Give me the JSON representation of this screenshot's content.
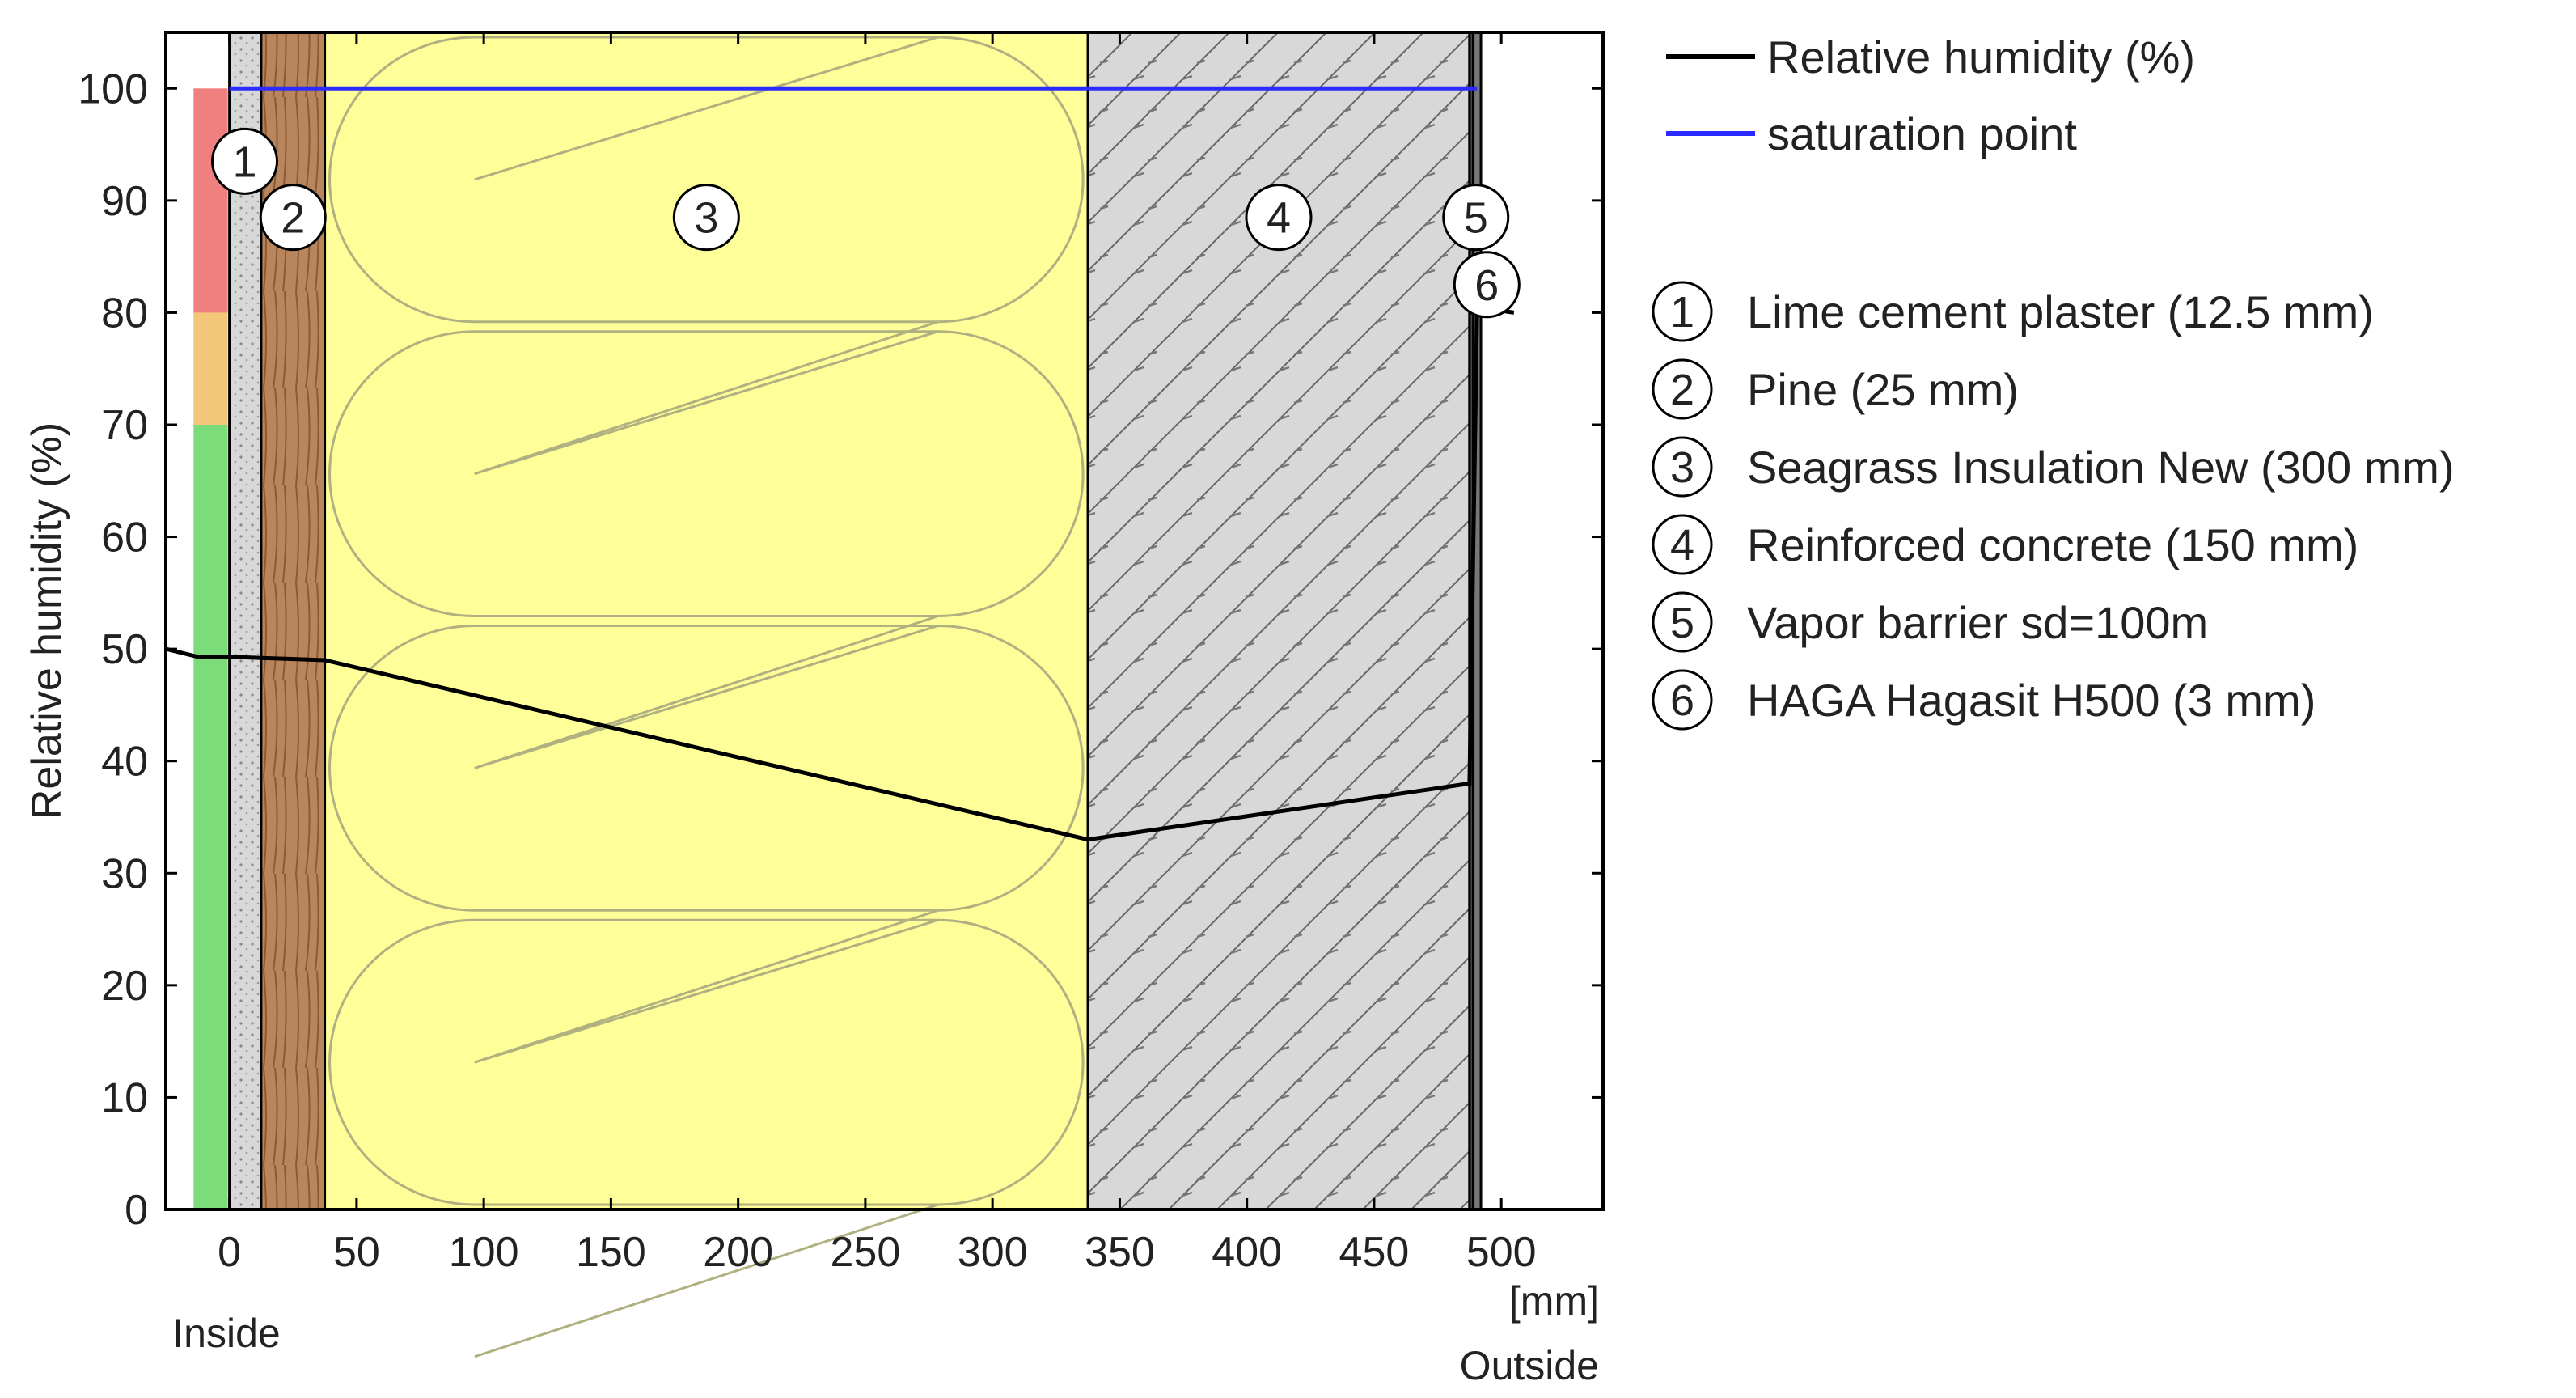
{
  "chart_data": {
    "type": "line",
    "ylabel": "Relative humidity (%)",
    "xunit": "[mm]",
    "x_side_labels": {
      "inside": "Inside",
      "outside": "Outside"
    },
    "xlim": [
      -25,
      540
    ],
    "ylim": [
      0,
      105
    ],
    "x_ticks": [
      0,
      50,
      100,
      150,
      200,
      250,
      300,
      350,
      400,
      450,
      500
    ],
    "y_ticks": [
      0,
      10,
      20,
      30,
      40,
      50,
      60,
      70,
      80,
      90,
      100
    ],
    "series": [
      {
        "name": "Relative humidity (%)",
        "color": "#000000",
        "points": [
          [
            -25,
            50
          ],
          [
            -12.5,
            49.3
          ],
          [
            0,
            49.3
          ],
          [
            12.5,
            49.2
          ],
          [
            37.5,
            49.0
          ],
          [
            337.5,
            33.0
          ],
          [
            487.5,
            38.0
          ],
          [
            490.5,
            80.5
          ],
          [
            505,
            80.0
          ]
        ]
      },
      {
        "name": "saturation point",
        "color": "#2b2bff",
        "points": [
          [
            0,
            100
          ],
          [
            490.5,
            100
          ]
        ]
      }
    ],
    "comfort_bands": [
      {
        "from": 0,
        "to": 70,
        "color": "#7ddc7a"
      },
      {
        "from": 70,
        "to": 80,
        "color": "#f3c77a"
      },
      {
        "from": 80,
        "to": 100,
        "color": "#f08080"
      }
    ],
    "layers": [
      {
        "number": "1",
        "name": "Lime cement plaster (12.5 mm)",
        "from": 0,
        "to": 12.5,
        "fill": "#d8d8d8",
        "pattern": "dots"
      },
      {
        "number": "2",
        "name": "Pine (25 mm)",
        "from": 12.5,
        "to": 37.5,
        "fill": "#b8855c",
        "pattern": "wood"
      },
      {
        "number": "3",
        "name": "Seagrass Insulation New (300 mm)",
        "from": 37.5,
        "to": 337.5,
        "fill": "#ffff99",
        "pattern": "insulation"
      },
      {
        "number": "4",
        "name": "Reinforced concrete (150 mm)",
        "from": 337.5,
        "to": 487.5,
        "fill": "#d8d8d8",
        "pattern": "hatch"
      },
      {
        "number": "5",
        "name": "Vapor barrier sd=100m",
        "from": 487.5,
        "to": 489.0,
        "fill": "#444444",
        "pattern": "solid"
      },
      {
        "number": "6",
        "name": "HAGA Hagasit H500 (3 mm)",
        "from": 489.0,
        "to": 492.0,
        "fill": "#777777",
        "pattern": "solid"
      }
    ],
    "legend": {
      "placement": "right"
    }
  }
}
